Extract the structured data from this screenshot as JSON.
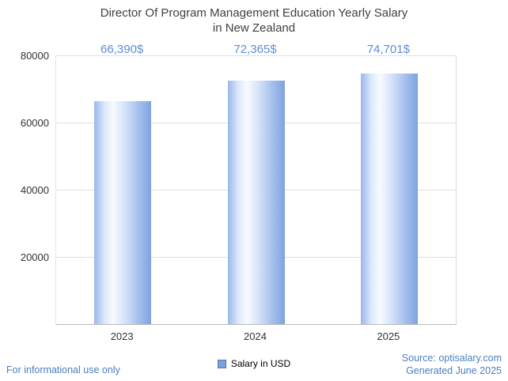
{
  "title_lines": [
    "Director Of Program Management Education Yearly Salary",
    "in New Zealand"
  ],
  "chart_data": {
    "type": "bar",
    "title": "Director Of Program Management Education Yearly Salary in New Zealand",
    "categories": [
      "2023",
      "2024",
      "2025"
    ],
    "values": [
      66390,
      72365,
      74701
    ],
    "value_labels": [
      "66,390$",
      "72,365$",
      "74,701$"
    ],
    "series_name": "Salary in USD",
    "xlabel": "",
    "ylabel": "",
    "ylim": [
      0,
      80000
    ],
    "yticks": [
      20000,
      40000,
      60000,
      80000
    ],
    "grid": true,
    "legend_position": "bottom"
  },
  "colors": {
    "value_label_text": "#5b8dd3",
    "bar_left": "#9bb7ea",
    "bar_center": "#f8fbff",
    "bar_right": "#7fa2de",
    "legend_swatch": "#7da0dc",
    "footer_text": "#4d7ec0",
    "gridline": "#e0e0e0",
    "title_text": "#3f3f3f"
  },
  "footer": {
    "left": "For informational use only",
    "source": "Source: optisalary.com",
    "generated": "Generated June 2025"
  }
}
